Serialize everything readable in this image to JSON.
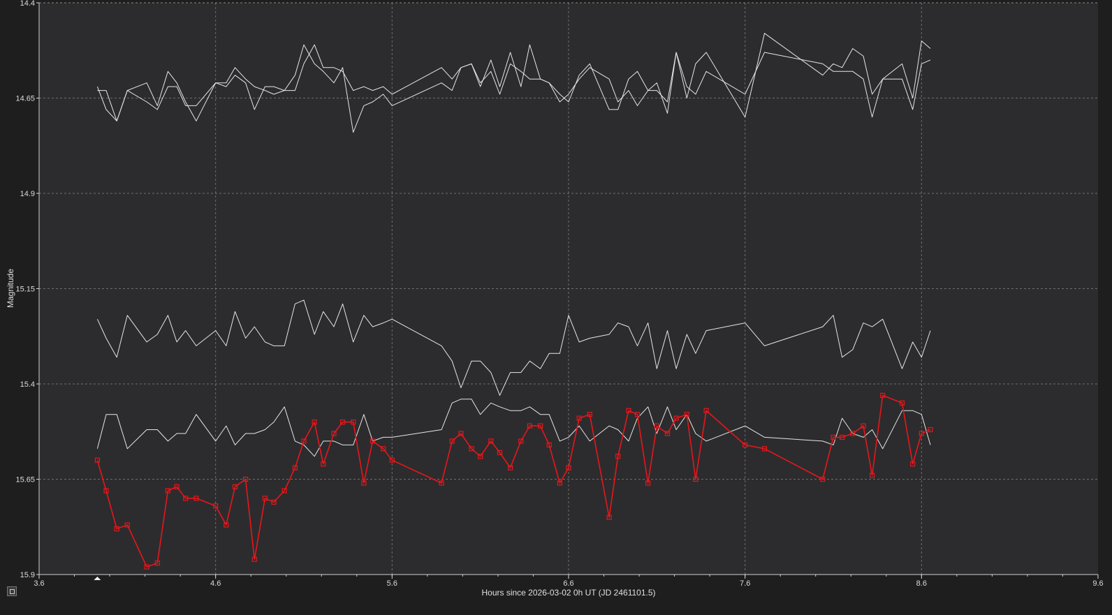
{
  "chart_data": {
    "type": "line",
    "xlabel": "Hours since 2026-03-02 0h UT (JD 2461101.5)",
    "ylabel": "Magnitude",
    "xlim": [
      3.6,
      9.6
    ],
    "ylim": [
      14.4,
      15.9
    ],
    "y_inverted": true,
    "x_ticks": [
      3.6,
      4.6,
      5.6,
      6.6,
      7.6,
      8.6,
      9.6
    ],
    "y_ticks": [
      14.4,
      14.65,
      14.9,
      15.15,
      15.4,
      15.65,
      15.9
    ],
    "grid": true,
    "colors": {
      "background": "#2c2c2e",
      "grid": "#8a8a8a",
      "comparison": "#e6e6e6",
      "target": "#e8161b"
    },
    "series": [
      {
        "role": "comparison",
        "color": "#e6e6e6",
        "x": [
          3.93,
          3.98,
          4.04,
          4.1,
          4.21,
          4.27,
          4.33,
          4.38,
          4.43,
          4.49,
          4.6,
          4.66,
          4.71,
          4.77,
          4.82,
          4.88,
          4.93,
          4.99,
          5.05,
          5.1,
          5.16,
          5.21,
          5.27,
          5.32,
          5.38,
          5.44,
          5.49,
          5.55,
          5.6,
          5.88,
          5.94,
          5.99,
          6.05,
          6.1,
          6.16,
          6.21,
          6.27,
          6.33,
          6.38,
          6.44,
          6.49,
          6.55,
          6.6,
          6.66,
          6.72,
          6.83,
          6.88,
          6.94,
          6.99,
          7.05,
          7.1,
          7.16,
          7.21,
          7.27,
          7.32,
          7.38,
          7.6,
          7.71,
          8.04,
          8.1,
          8.15,
          8.21,
          8.27,
          8.32,
          8.38,
          8.49,
          8.55,
          8.6,
          8.65
        ],
        "y": [
          14.62,
          14.68,
          14.71,
          14.63,
          14.61,
          14.67,
          14.58,
          14.61,
          14.66,
          14.71,
          14.61,
          14.61,
          14.57,
          14.6,
          14.62,
          14.63,
          14.64,
          14.63,
          14.59,
          14.51,
          14.56,
          14.58,
          14.61,
          14.57,
          14.74,
          14.67,
          14.66,
          14.64,
          14.67,
          14.61,
          14.63,
          14.57,
          14.56,
          14.62,
          14.55,
          14.62,
          14.53,
          14.62,
          14.51,
          14.6,
          14.61,
          14.64,
          14.66,
          14.59,
          14.56,
          14.68,
          14.68,
          14.6,
          14.58,
          14.63,
          14.61,
          14.69,
          14.53,
          14.65,
          14.56,
          14.53,
          14.7,
          14.48,
          14.59,
          14.56,
          14.57,
          14.52,
          14.54,
          14.64,
          14.6,
          14.56,
          14.65,
          14.5,
          14.52
        ]
      },
      {
        "role": "comparison",
        "color": "#e6e6e6",
        "x": [
          3.93,
          3.98,
          4.04,
          4.1,
          4.21,
          4.27,
          4.33,
          4.38,
          4.43,
          4.49,
          4.6,
          4.66,
          4.71,
          4.77,
          4.82,
          4.88,
          4.93,
          4.99,
          5.05,
          5.1,
          5.16,
          5.21,
          5.27,
          5.32,
          5.38,
          5.44,
          5.49,
          5.55,
          5.6,
          5.88,
          5.94,
          5.99,
          6.05,
          6.1,
          6.16,
          6.21,
          6.27,
          6.33,
          6.38,
          6.44,
          6.49,
          6.55,
          6.6,
          6.66,
          6.72,
          6.83,
          6.88,
          6.94,
          6.99,
          7.05,
          7.1,
          7.16,
          7.21,
          7.27,
          7.32,
          7.38,
          7.6,
          7.71,
          8.04,
          8.1,
          8.15,
          8.21,
          8.27,
          8.32,
          8.38,
          8.49,
          8.55,
          8.6,
          8.65
        ],
        "y": [
          14.63,
          14.63,
          14.71,
          14.63,
          14.66,
          14.68,
          14.62,
          14.62,
          14.67,
          14.67,
          14.61,
          14.62,
          14.59,
          14.61,
          14.68,
          14.62,
          14.62,
          14.63,
          14.63,
          14.56,
          14.51,
          14.57,
          14.57,
          14.58,
          14.63,
          14.62,
          14.63,
          14.62,
          14.64,
          14.57,
          14.6,
          14.57,
          14.56,
          14.61,
          14.58,
          14.64,
          14.56,
          14.58,
          14.6,
          14.6,
          14.61,
          14.66,
          14.64,
          14.6,
          14.57,
          14.6,
          14.66,
          14.63,
          14.67,
          14.63,
          14.63,
          14.66,
          14.53,
          14.62,
          14.64,
          14.58,
          14.64,
          14.53,
          14.56,
          14.58,
          14.58,
          14.58,
          14.6,
          14.7,
          14.6,
          14.6,
          14.68,
          14.56,
          14.55
        ]
      },
      {
        "role": "comparison",
        "color": "#e6e6e6",
        "x": [
          3.93,
          3.98,
          4.04,
          4.1,
          4.21,
          4.27,
          4.33,
          4.38,
          4.43,
          4.49,
          4.6,
          4.66,
          4.71,
          4.77,
          4.82,
          4.88,
          4.93,
          4.99,
          5.05,
          5.1,
          5.16,
          5.21,
          5.27,
          5.32,
          5.38,
          5.44,
          5.49,
          5.55,
          5.6,
          5.88,
          5.94,
          5.99,
          6.05,
          6.1,
          6.16,
          6.21,
          6.27,
          6.33,
          6.38,
          6.44,
          6.49,
          6.55,
          6.6,
          6.66,
          6.72,
          6.83,
          6.88,
          6.94,
          6.99,
          7.05,
          7.1,
          7.16,
          7.21,
          7.27,
          7.32,
          7.38,
          7.6,
          7.71,
          8.04,
          8.1,
          8.15,
          8.21,
          8.27,
          8.32,
          8.38,
          8.49,
          8.55,
          8.6,
          8.65
        ],
        "y": [
          15.23,
          15.28,
          15.33,
          15.22,
          15.29,
          15.27,
          15.22,
          15.29,
          15.26,
          15.3,
          15.26,
          15.3,
          15.21,
          15.28,
          15.25,
          15.29,
          15.3,
          15.3,
          15.19,
          15.18,
          15.27,
          15.21,
          15.25,
          15.19,
          15.29,
          15.22,
          15.25,
          15.24,
          15.23,
          15.3,
          15.34,
          15.41,
          15.34,
          15.34,
          15.37,
          15.43,
          15.37,
          15.37,
          15.34,
          15.36,
          15.32,
          15.32,
          15.22,
          15.29,
          15.28,
          15.27,
          15.24,
          15.25,
          15.3,
          15.24,
          15.36,
          15.26,
          15.36,
          15.27,
          15.32,
          15.26,
          15.24,
          15.3,
          15.25,
          15.22,
          15.33,
          15.31,
          15.24,
          15.25,
          15.23,
          15.36,
          15.29,
          15.33,
          15.26
        ]
      },
      {
        "role": "comparison",
        "color": "#e6e6e6",
        "x": [
          3.93,
          3.98,
          4.04,
          4.1,
          4.21,
          4.27,
          4.33,
          4.38,
          4.43,
          4.49,
          4.6,
          4.66,
          4.71,
          4.77,
          4.82,
          4.88,
          4.93,
          4.99,
          5.05,
          5.1,
          5.16,
          5.21,
          5.27,
          5.32,
          5.38,
          5.44,
          5.49,
          5.55,
          5.6,
          5.88,
          5.94,
          5.99,
          6.05,
          6.1,
          6.16,
          6.21,
          6.27,
          6.33,
          6.38,
          6.44,
          6.49,
          6.55,
          6.6,
          6.66,
          6.72,
          6.83,
          6.88,
          6.94,
          6.99,
          7.05,
          7.1,
          7.16,
          7.21,
          7.27,
          7.32,
          7.38,
          7.6,
          7.71,
          8.04,
          8.1,
          8.15,
          8.21,
          8.27,
          8.32,
          8.38,
          8.49,
          8.55,
          8.6,
          8.65
        ],
        "y": [
          15.57,
          15.48,
          15.48,
          15.57,
          15.52,
          15.52,
          15.55,
          15.53,
          15.53,
          15.48,
          15.55,
          15.51,
          15.56,
          15.53,
          15.53,
          15.52,
          15.5,
          15.46,
          15.55,
          15.56,
          15.59,
          15.55,
          15.55,
          15.56,
          15.56,
          15.48,
          15.55,
          15.54,
          15.54,
          15.52,
          15.45,
          15.44,
          15.44,
          15.48,
          15.45,
          15.46,
          15.47,
          15.47,
          15.46,
          15.48,
          15.48,
          15.55,
          15.54,
          15.51,
          15.55,
          15.51,
          15.52,
          15.55,
          15.49,
          15.46,
          15.53,
          15.46,
          15.52,
          15.48,
          15.53,
          15.55,
          15.51,
          15.54,
          15.55,
          15.56,
          15.49,
          15.53,
          15.54,
          15.52,
          15.57,
          15.47,
          15.47,
          15.48,
          15.56
        ]
      },
      {
        "role": "target",
        "color": "#e8161b",
        "marker": "square",
        "x": [
          3.93,
          3.98,
          4.04,
          4.1,
          4.21,
          4.27,
          4.33,
          4.38,
          4.43,
          4.49,
          4.6,
          4.66,
          4.71,
          4.77,
          4.82,
          4.88,
          4.93,
          4.99,
          5.05,
          5.1,
          5.16,
          5.21,
          5.27,
          5.32,
          5.38,
          5.44,
          5.49,
          5.55,
          5.6,
          5.88,
          5.94,
          5.99,
          6.05,
          6.1,
          6.16,
          6.21,
          6.27,
          6.33,
          6.38,
          6.44,
          6.49,
          6.55,
          6.6,
          6.66,
          6.72,
          6.83,
          6.88,
          6.94,
          6.99,
          7.05,
          7.1,
          7.16,
          7.21,
          7.27,
          7.32,
          7.38,
          7.6,
          7.71,
          8.04,
          8.1,
          8.15,
          8.21,
          8.27,
          8.32,
          8.38,
          8.49,
          8.55,
          8.6,
          8.65
        ],
        "y": [
          15.6,
          15.68,
          15.78,
          15.77,
          15.88,
          15.87,
          15.68,
          15.67,
          15.7,
          15.7,
          15.72,
          15.77,
          15.67,
          15.65,
          15.86,
          15.7,
          15.71,
          15.68,
          15.62,
          15.55,
          15.5,
          15.61,
          15.53,
          15.5,
          15.5,
          15.66,
          15.55,
          15.57,
          15.6,
          15.66,
          15.55,
          15.53,
          15.57,
          15.59,
          15.55,
          15.58,
          15.62,
          15.55,
          15.51,
          15.51,
          15.56,
          15.66,
          15.62,
          15.49,
          15.48,
          15.75,
          15.59,
          15.47,
          15.48,
          15.66,
          15.51,
          15.53,
          15.49,
          15.48,
          15.65,
          15.47,
          15.56,
          15.57,
          15.65,
          15.54,
          15.54,
          15.53,
          15.51,
          15.64,
          15.43,
          15.45,
          15.61,
          15.53,
          15.52
        ]
      }
    ]
  }
}
